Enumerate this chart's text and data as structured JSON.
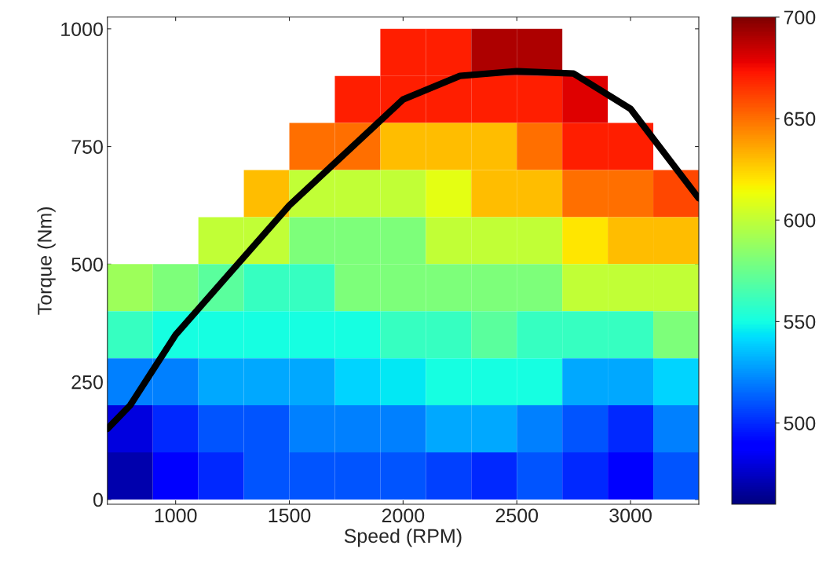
{
  "chart_data": {
    "type": "heatmap",
    "xlabel": "Speed (RPM)",
    "ylabel": "Torque (Nm)",
    "x": [
      800,
      1000,
      1200,
      1400,
      1600,
      1800,
      2000,
      2200,
      2400,
      2600,
      2800,
      3000,
      3200
    ],
    "y": [
      950,
      850,
      750,
      650,
      550,
      450,
      350,
      250,
      150,
      50
    ],
    "cells": [
      [
        null,
        null,
        null,
        null,
        null,
        null,
        670,
        670,
        690,
        690,
        null,
        null,
        null
      ],
      [
        null,
        null,
        null,
        null,
        null,
        670,
        670,
        670,
        670,
        670,
        680,
        null,
        null
      ],
      [
        null,
        null,
        null,
        null,
        650,
        650,
        630,
        630,
        630,
        650,
        670,
        670,
        null
      ],
      [
        null,
        null,
        null,
        630,
        600,
        600,
        600,
        610,
        630,
        630,
        650,
        650,
        660
      ],
      [
        null,
        null,
        600,
        600,
        580,
        580,
        580,
        600,
        600,
        600,
        620,
        630,
        630
      ],
      [
        590,
        580,
        570,
        560,
        560,
        580,
        580,
        580,
        580,
        580,
        600,
        600,
        600
      ],
      [
        560,
        550,
        550,
        550,
        550,
        550,
        560,
        560,
        570,
        560,
        560,
        560,
        580
      ],
      [
        520,
        520,
        530,
        530,
        530,
        540,
        545,
        550,
        550,
        550,
        530,
        530,
        540
      ],
      [
        480,
        500,
        510,
        510,
        520,
        520,
        520,
        530,
        530,
        520,
        510,
        500,
        520
      ],
      [
        470,
        490,
        500,
        510,
        510,
        510,
        510,
        505,
        500,
        510,
        500,
        490,
        510
      ]
    ],
    "clim": [
      460,
      700
    ],
    "cticks": [
      500,
      550,
      600,
      650,
      700
    ],
    "xlim": [
      700,
      3300
    ],
    "xticks": [
      1000,
      1500,
      2000,
      2500,
      3000
    ],
    "ylim": [
      -10,
      1025
    ],
    "yticks": [
      0,
      250,
      500,
      750,
      1000
    ],
    "series": [
      {
        "type": "line",
        "color": "#000000",
        "x": [
          700,
          800,
          1000,
          1500,
          2000,
          2250,
          2500,
          2750,
          3000,
          3300
        ],
        "values": [
          150,
          200,
          350,
          625,
          850,
          900,
          910,
          905,
          830,
          640
        ]
      }
    ],
    "grid": false,
    "legend": false
  }
}
